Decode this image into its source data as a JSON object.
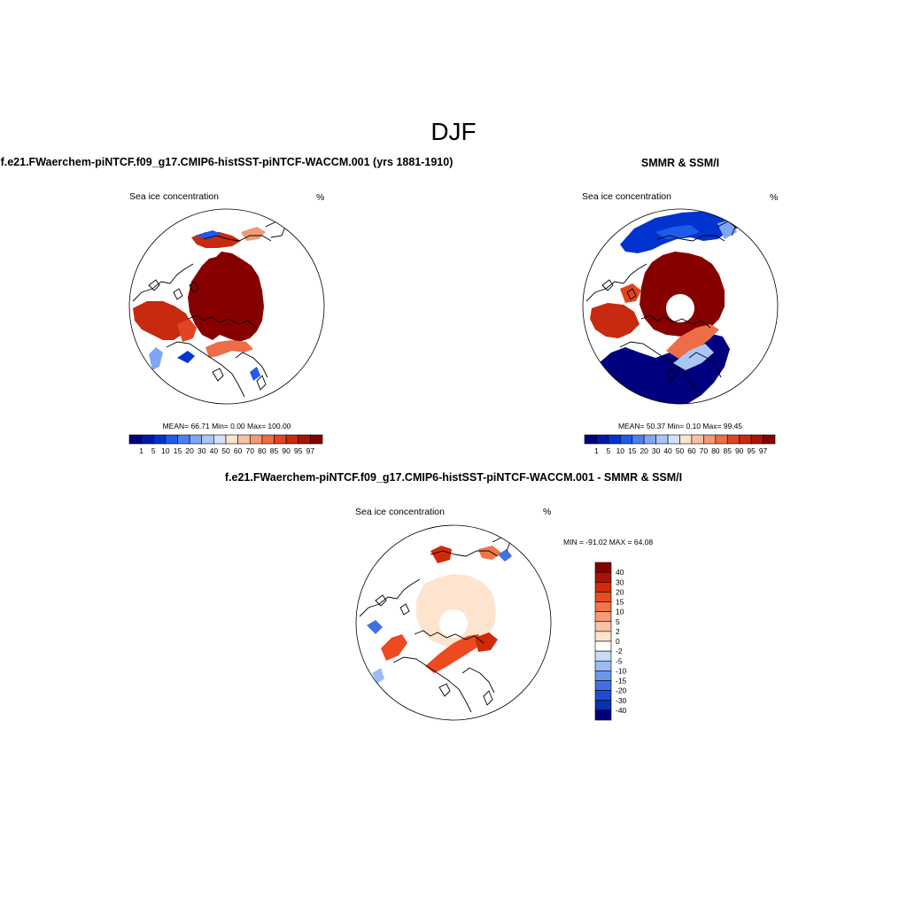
{
  "title": "DJF",
  "panels": [
    {
      "title": "f.e21.FWaerchem-piNTCF.f09_g17.CMIP6-histSST-piNTCF-WACCM.001 (yrs 1881-1910)",
      "variable": "Sea ice concentration",
      "units": "%",
      "stats_text": "MEAN=  66.71  Min=   0.00  Max= 100.00",
      "stats": {
        "mean": 66.71,
        "min": 0.0,
        "max": 100.0
      }
    },
    {
      "title": "SMMR & SSM/I",
      "variable": "Sea ice concentration",
      "units": "%",
      "stats_text": "MEAN=  50.37  Min=   0.10  Max=  99.45",
      "stats": {
        "mean": 50.37,
        "min": 0.1,
        "max": 99.45
      }
    },
    {
      "title": "f.e21.FWaerchem-piNTCF.f09_g17.CMIP6-histSST-piNTCF-WACCM.001 - SMMR & SSM/I",
      "variable": "Sea ice concentration",
      "units": "%",
      "stats_text": "MIN = -91.02 MAX =  64.08",
      "stats": {
        "min": -91.02,
        "max": 64.08
      }
    }
  ],
  "colorbar_abs": {
    "labels": [
      "1",
      "5",
      "10",
      "15",
      "20",
      "30",
      "40",
      "50",
      "60",
      "70",
      "80",
      "85",
      "90",
      "95",
      "97"
    ],
    "colors": [
      "#00007f",
      "#0018a8",
      "#0033d0",
      "#1f5ae8",
      "#4a7ff0",
      "#7fa6f5",
      "#aac6f7",
      "#d2e2fa",
      "#fbe4d0",
      "#f7c2a6",
      "#f29a78",
      "#ec6d47",
      "#e14420",
      "#c72a0e",
      "#a81405",
      "#870000"
    ]
  },
  "colorbar_diff": {
    "labels": [
      "40",
      "30",
      "20",
      "15",
      "10",
      "5",
      "2",
      "0",
      "-2",
      "-5",
      "-10",
      "-15",
      "-20",
      "-30",
      "-40"
    ],
    "colors": [
      "#870000",
      "#a81405",
      "#d02a0a",
      "#ec4a20",
      "#f27548",
      "#f49b78",
      "#f8c3a4",
      "#fde4cf",
      "#ffffff",
      "#c9dcf8",
      "#9bbcf3",
      "#6a97ec",
      "#3f72e0",
      "#1b4fd0",
      "#0a2fb0",
      "#00007f"
    ]
  }
}
